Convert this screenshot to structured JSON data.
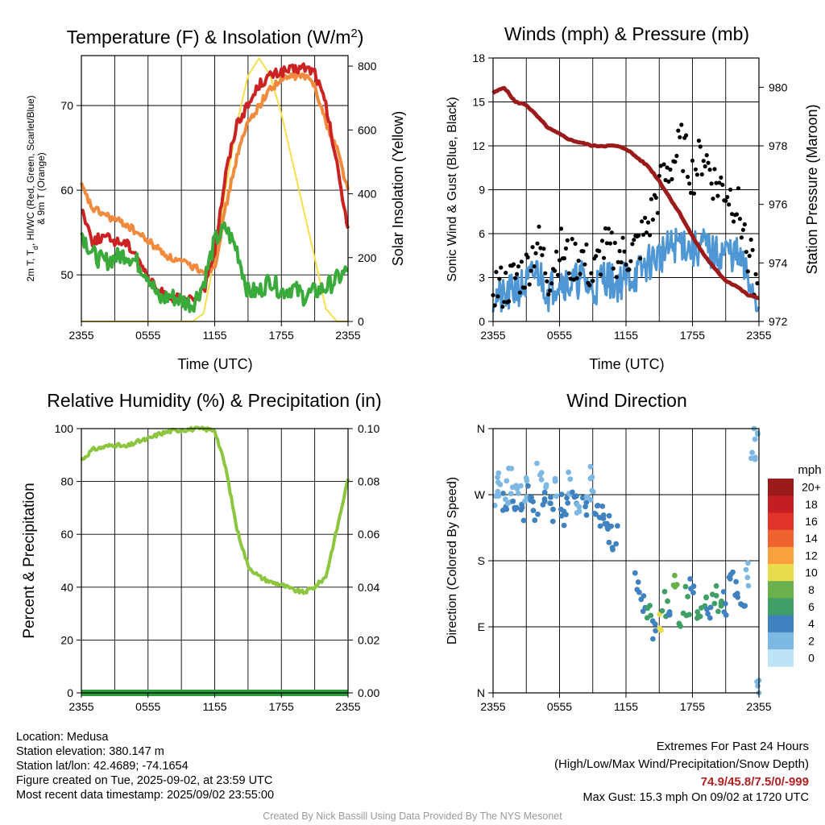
{
  "panels": {
    "temperature": {
      "title_main": "Temperature (F) & Insolation (W/m",
      "title_sup": "2",
      "title_end": ")",
      "ylabel_left_1": "2m T, T",
      "ylabel_left_sub": "d",
      "ylabel_left_2": ", HI/WC (Red, Green, Scarlet/Blue)",
      "ylabel_left_3": "& 9m T (Orange)",
      "ylabel_right": "Solar Insolation (Yellow)",
      "xlabel": "Time (UTC)",
      "xticks": [
        "2355",
        "0555",
        "1155",
        "1755",
        "2355"
      ],
      "yticks_left": [
        "50",
        "60",
        "70"
      ],
      "yticks_right": [
        "0",
        "200",
        "400",
        "600",
        "800"
      ]
    },
    "winds": {
      "title": "Winds (mph) & Pressure (mb)",
      "ylabel_left": "Sonic Wind & Gust (Blue, Black)",
      "ylabel_right": "Station Pressure (Maroon)",
      "xlabel": "Time (UTC)",
      "xticks": [
        "2355",
        "0555",
        "1155",
        "1755",
        "2355"
      ],
      "yticks_left": [
        "0",
        "3",
        "6",
        "9",
        "12",
        "15",
        "18"
      ],
      "yticks_right": [
        "972",
        "974",
        "976",
        "978",
        "980"
      ]
    },
    "humidity": {
      "title": "Relative Humidity (%) & Precipitation (in)",
      "ylabel_left": "Percent & Precipitation",
      "xticks": [
        "2355",
        "0555",
        "1155",
        "1755",
        "2355"
      ],
      "yticks_left": [
        "0",
        "20",
        "40",
        "60",
        "80",
        "100"
      ],
      "yticks_right": [
        "0.00",
        "0.02",
        "0.04",
        "0.06",
        "0.08",
        "0.10"
      ]
    },
    "direction": {
      "title": "Wind Direction",
      "ylabel_left": "Direction (Colored By Speed)",
      "xticks": [
        "2355",
        "0555",
        "1155",
        "1755",
        "2355"
      ],
      "yticks_left": [
        "N",
        "E",
        "S",
        "W",
        "N"
      ],
      "colorbar_title": "mph",
      "colorbar_labels": [
        "20+",
        "18",
        "16",
        "14",
        "12",
        "10",
        "8",
        "6",
        "4",
        "2",
        "0"
      ]
    }
  },
  "colors": {
    "temp_red": "#cc2222",
    "temp_orange": "#f08a3c",
    "dewpoint_green": "#3aaa3a",
    "insolation_yellow": "#f5e04a",
    "wind_blue": "#4f96d4",
    "gust_black": "#000000",
    "pressure_maroon": "#9b1b1b",
    "rh_green": "#8cc63f",
    "precip_green": "#2e9a3e",
    "extremes_red": "#b22222",
    "colorbar": [
      "#9b1b1b",
      "#c41e24",
      "#e0332a",
      "#f0622e",
      "#f9a13f",
      "#e8dc4e",
      "#6ab14d",
      "#3f9f66",
      "#3f82bf",
      "#7db8e3",
      "#bde3f7"
    ]
  },
  "chart_data": [
    {
      "type": "line",
      "title": "Temperature (F) & Insolation (W/m2)",
      "xlabel": "Time (UTC)",
      "ylabel": "2m T, Td, HI/WC (Red, Green, Scarlet/Blue) & 9m T (Orange)",
      "ylabel_right": "Solar Insolation (Yellow)",
      "x_hours_ticks": [
        "2355",
        "0555",
        "1155",
        "1755",
        "2355"
      ],
      "ylim": [
        44.5,
        75.9
      ],
      "ylim_right": [
        0,
        833
      ],
      "x": [
        0,
        1,
        2,
        3,
        4,
        5,
        6,
        7,
        8,
        9,
        10,
        11,
        12,
        13,
        14,
        15,
        16,
        17,
        18,
        19,
        20,
        21,
        22,
        23,
        24
      ],
      "series": [
        {
          "name": "2m T",
          "axis": "left",
          "values": [
            58,
            54,
            54.5,
            54,
            53.8,
            52.5,
            49.5,
            48,
            47.5,
            47,
            47,
            48,
            53,
            62,
            68,
            70,
            72.5,
            73.5,
            74,
            74.2,
            74.5,
            74,
            70,
            63,
            55.5
          ]
        },
        {
          "name": "9m T",
          "axis": "left",
          "values": [
            60.5,
            57.8,
            57.2,
            56.5,
            56,
            55,
            54,
            53,
            52,
            51.5,
            51,
            50.5,
            51,
            58,
            64,
            68,
            70,
            72,
            73,
            73.5,
            73.5,
            72.5,
            68,
            65,
            60
          ]
        },
        {
          "name": "Td",
          "axis": "left",
          "values": [
            55,
            52.5,
            51.5,
            52,
            52.5,
            51.5,
            50,
            47,
            47.5,
            47,
            46.5,
            49,
            54,
            55.5,
            53,
            48,
            48,
            49.5,
            48,
            48.5,
            47.5,
            48,
            48.5,
            49.5,
            50.5
          ]
        },
        {
          "name": "Solar Insolation",
          "axis": "right",
          "values": [
            0,
            0,
            0,
            0,
            0,
            0,
            0,
            0,
            0,
            0,
            0,
            25,
            200,
            420,
            620,
            770,
            825,
            770,
            650,
            500,
            350,
            200,
            40,
            0,
            0
          ]
        }
      ]
    },
    {
      "type": "line",
      "title": "Winds (mph) & Pressure (mb)",
      "xlabel": "Time (UTC)",
      "ylabel": "Sonic Wind & Gust (Blue, Black)",
      "ylabel_right": "Station Pressure (Maroon)",
      "x_hours_ticks": [
        "2355",
        "0555",
        "1155",
        "1755",
        "2355"
      ],
      "ylim": [
        0,
        18
      ],
      "ylim_right": [
        972,
        981
      ],
      "x": [
        0,
        1,
        2,
        3,
        4,
        5,
        6,
        7,
        8,
        9,
        10,
        11,
        12,
        13,
        14,
        15,
        16,
        17,
        18,
        19,
        20,
        21,
        22,
        23,
        24
      ],
      "series": [
        {
          "name": "Sonic Wind",
          "axis": "left",
          "values": [
            1.8,
            1.5,
            2.2,
            2.5,
            3.5,
            2.0,
            3.0,
            2.5,
            3.0,
            2.0,
            3.2,
            2.5,
            3.0,
            3.2,
            4.0,
            4.5,
            5.0,
            5.5,
            4.8,
            5.2,
            4.5,
            4.8,
            4.5,
            3.0,
            1.0
          ]
        },
        {
          "name": "Gust",
          "axis": "left",
          "values": [
            2.5,
            2.2,
            3.0,
            3.5,
            5.5,
            3.0,
            5.0,
            4.0,
            4.5,
            3.0,
            5.0,
            4.5,
            4.5,
            5.0,
            6.5,
            9.0,
            10.5,
            12.0,
            10.0,
            11.5,
            9.5,
            9.0,
            8.0,
            5.0,
            1.5
          ]
        },
        {
          "name": "Station Pressure",
          "axis": "right",
          "values": [
            979.8,
            980.0,
            979.5,
            979.4,
            979.0,
            978.6,
            978.4,
            978.2,
            978.1,
            978.0,
            978.0,
            978.0,
            977.9,
            977.6,
            977.3,
            976.8,
            976.2,
            975.6,
            974.9,
            974.3,
            973.8,
            973.4,
            973.2,
            972.9,
            972.8
          ]
        }
      ]
    },
    {
      "type": "line",
      "title": "Relative Humidity (%) & Precipitation (in)",
      "ylabel": "Percent & Precipitation",
      "x_hours_ticks": [
        "2355",
        "0555",
        "1155",
        "1755",
        "2355"
      ],
      "ylim": [
        0,
        100
      ],
      "ylim_right": [
        0,
        0.1
      ],
      "x": [
        0,
        1,
        2,
        3,
        4,
        5,
        6,
        7,
        8,
        9,
        10,
        11,
        12,
        13,
        14,
        15,
        16,
        17,
        18,
        19,
        20,
        21,
        22,
        23,
        24
      ],
      "series": [
        {
          "name": "Relative Humidity",
          "axis": "left",
          "values": [
            88,
            92,
            93,
            94,
            93,
            95,
            96,
            98,
            99,
            99.5,
            99.8,
            99.8,
            99.5,
            85,
            62,
            48,
            44,
            42,
            41,
            39,
            38,
            40,
            44,
            62,
            81
          ]
        },
        {
          "name": "Precipitation",
          "axis": "right",
          "values": [
            0,
            0,
            0,
            0,
            0,
            0,
            0,
            0,
            0,
            0,
            0,
            0,
            0,
            0,
            0,
            0,
            0,
            0,
            0,
            0,
            0,
            0,
            0,
            0,
            0
          ]
        }
      ]
    },
    {
      "type": "scatter",
      "title": "Wind Direction",
      "ylabel": "Direction (Colored By Speed)",
      "x_hours_ticks": [
        "2355",
        "0555",
        "1155",
        "1755",
        "2355"
      ],
      "ylim": [
        0,
        360
      ],
      "ytick_labels": [
        "N",
        "E",
        "S",
        "W",
        "N"
      ],
      "colorbar": {
        "title": "mph",
        "levels": [
          "0",
          "2",
          "4",
          "6",
          "8",
          "10",
          "12",
          "14",
          "16",
          "18",
          "20+"
        ]
      },
      "points": [
        {
          "x": 0.3,
          "y": 270,
          "speed": 2
        },
        {
          "x": 0.6,
          "y": 285,
          "speed": 1
        },
        {
          "x": 1.0,
          "y": 265,
          "speed": 3
        },
        {
          "x": 1.3,
          "y": 275,
          "speed": 2
        },
        {
          "x": 1.6,
          "y": 290,
          "speed": 1
        },
        {
          "x": 2.0,
          "y": 255,
          "speed": 4
        },
        {
          "x": 2.3,
          "y": 268,
          "speed": 2
        },
        {
          "x": 2.6,
          "y": 250,
          "speed": 3
        },
        {
          "x": 3.0,
          "y": 280,
          "speed": 2
        },
        {
          "x": 3.4,
          "y": 262,
          "speed": 3
        },
        {
          "x": 3.8,
          "y": 248,
          "speed": 4
        },
        {
          "x": 4.2,
          "y": 300,
          "speed": 1
        },
        {
          "x": 4.6,
          "y": 258,
          "speed": 3
        },
        {
          "x": 5.0,
          "y": 270,
          "speed": 2
        },
        {
          "x": 5.4,
          "y": 252,
          "speed": 4
        },
        {
          "x": 5.8,
          "y": 275,
          "speed": 2
        },
        {
          "x": 6.2,
          "y": 260,
          "speed": 3
        },
        {
          "x": 6.6,
          "y": 248,
          "speed": 4
        },
        {
          "x": 7.0,
          "y": 282,
          "speed": 1
        },
        {
          "x": 7.4,
          "y": 255,
          "speed": 3
        },
        {
          "x": 7.8,
          "y": 265,
          "speed": 2
        },
        {
          "x": 8.2,
          "y": 250,
          "speed": 4
        },
        {
          "x": 8.6,
          "y": 275,
          "speed": 2
        },
        {
          "x": 9.0,
          "y": 290,
          "speed": 1
        },
        {
          "x": 9.4,
          "y": 245,
          "speed": 3
        },
        {
          "x": 9.8,
          "y": 238,
          "speed": 4
        },
        {
          "x": 10.2,
          "y": 230,
          "speed": 3
        },
        {
          "x": 10.6,
          "y": 222,
          "speed": 4
        },
        {
          "x": 11.0,
          "y": 215,
          "speed": 3
        },
        {
          "x": 13.0,
          "y": 150,
          "speed": 3
        },
        {
          "x": 13.5,
          "y": 120,
          "speed": 4
        },
        {
          "x": 14.0,
          "y": 105,
          "speed": 5
        },
        {
          "x": 14.5,
          "y": 85,
          "speed": 4
        },
        {
          "x": 15.0,
          "y": 95,
          "speed": 9
        },
        {
          "x": 15.5,
          "y": 120,
          "speed": 6
        },
        {
          "x": 16.0,
          "y": 100,
          "speed": 4
        },
        {
          "x": 16.5,
          "y": 140,
          "speed": 7
        },
        {
          "x": 17.0,
          "y": 110,
          "speed": 5
        },
        {
          "x": 17.5,
          "y": 125,
          "speed": 6
        },
        {
          "x": 18.0,
          "y": 150,
          "speed": 4
        },
        {
          "x": 18.5,
          "y": 115,
          "speed": 5
        },
        {
          "x": 19.0,
          "y": 130,
          "speed": 6
        },
        {
          "x": 19.5,
          "y": 105,
          "speed": 4
        },
        {
          "x": 20.0,
          "y": 140,
          "speed": 5
        },
        {
          "x": 20.5,
          "y": 118,
          "speed": 6
        },
        {
          "x": 21.0,
          "y": 125,
          "speed": 4
        },
        {
          "x": 21.5,
          "y": 150,
          "speed": 3
        },
        {
          "x": 22.0,
          "y": 135,
          "speed": 4
        },
        {
          "x": 22.5,
          "y": 115,
          "speed": 3
        },
        {
          "x": 23.0,
          "y": 160,
          "speed": 2
        },
        {
          "x": 23.5,
          "y": 330,
          "speed": 1
        },
        {
          "x": 23.8,
          "y": 355,
          "speed": 1
        },
        {
          "x": 24.0,
          "y": 3,
          "speed": 2
        }
      ]
    }
  ],
  "footer": {
    "location": "Location: Medusa",
    "elevation": "Station elevation: 380.147 m",
    "latlon": "Station lat/lon: 42.4689; -74.1654",
    "created": "Figure created on Tue, 2025-09-02, at 23:59 UTC",
    "recent": "Most recent data timestamp: 2025/09/02 23:55:00",
    "extremes_title": "Extremes For Past 24 Hours",
    "extremes_desc": "(High/Low/Max Wind/Precipitation/Snow Depth)",
    "extremes_values": "74.9/45.8/7.5/0/-999",
    "max_gust": "Max Gust: 15.3 mph On 09/02 at 1720 UTC",
    "credit": "Created By Nick Bassill Using Data Provided By The NYS Mesonet"
  }
}
